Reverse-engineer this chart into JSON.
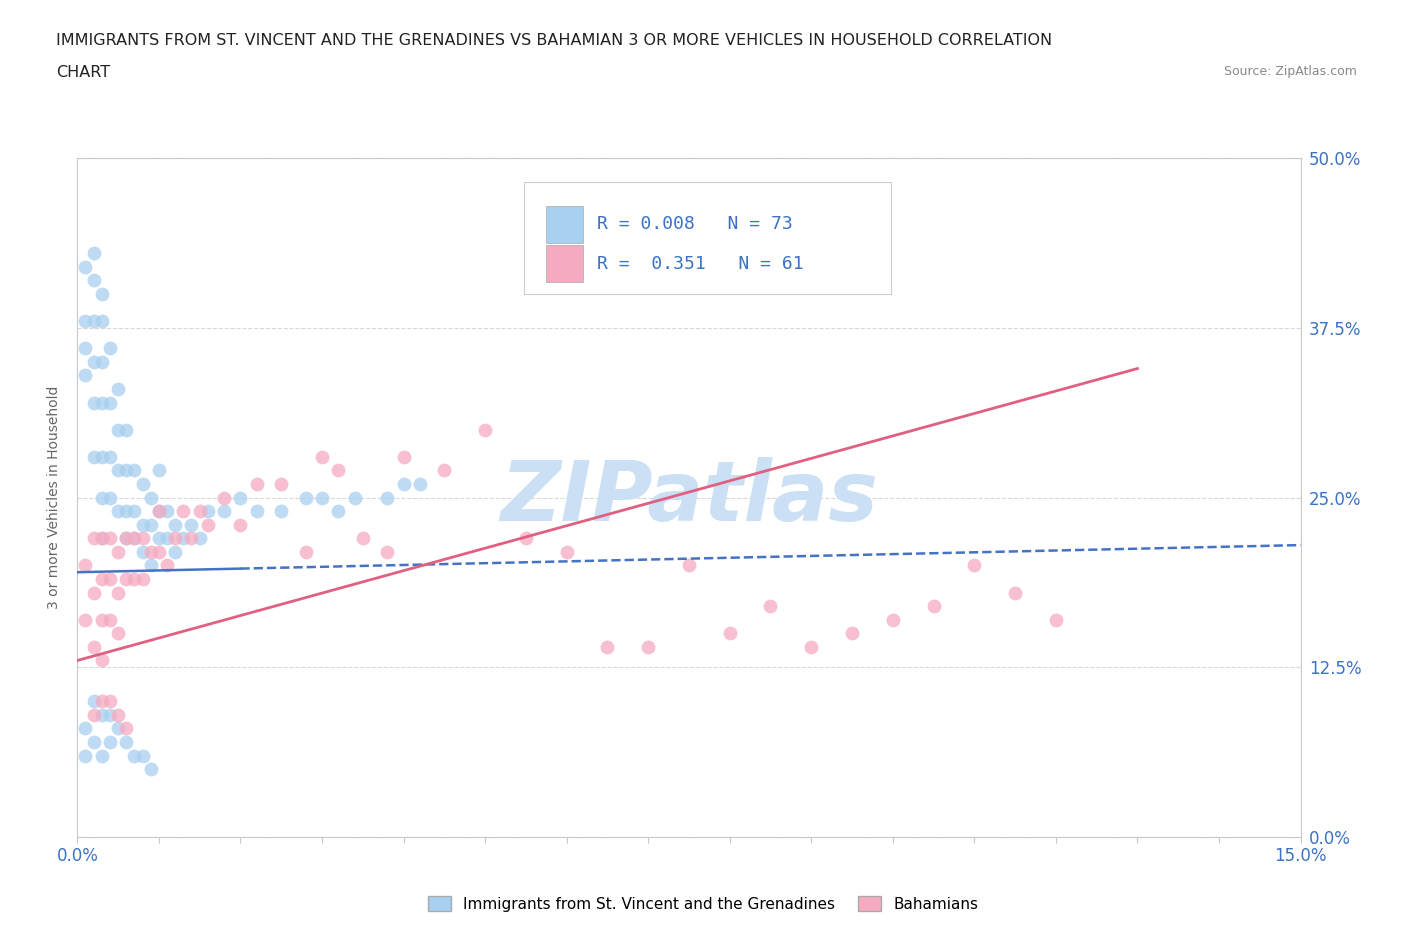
{
  "title_line1": "IMMIGRANTS FROM ST. VINCENT AND THE GRENADINES VS BAHAMIAN 3 OR MORE VEHICLES IN HOUSEHOLD CORRELATION",
  "title_line2": "CHART",
  "source_text": "Source: ZipAtlas.com",
  "ylabel": "3 or more Vehicles in Household",
  "xmin": 0.0,
  "xmax": 0.15,
  "ymin": 0.0,
  "ymax": 0.5,
  "blue_color": "#a8d0f0",
  "pink_color": "#f5aac0",
  "blue_line_color": "#4472c4",
  "pink_line_color": "#e06080",
  "watermark_color": "#cce0f5",
  "legend_R1": "0.008",
  "legend_N1": "73",
  "legend_R2": "0.351",
  "legend_N2": "61",
  "tick_color": "#3b72c4",
  "ytick_labels": [
    "0.0%",
    "12.5%",
    "25.0%",
    "37.5%",
    "50.0%"
  ],
  "ytick_values": [
    0.0,
    0.125,
    0.25,
    0.375,
    0.5
  ],
  "blue_scatter_x": [
    0.001,
    0.001,
    0.001,
    0.001,
    0.002,
    0.002,
    0.002,
    0.002,
    0.002,
    0.002,
    0.003,
    0.003,
    0.003,
    0.003,
    0.003,
    0.003,
    0.003,
    0.004,
    0.004,
    0.004,
    0.004,
    0.005,
    0.005,
    0.005,
    0.005,
    0.006,
    0.006,
    0.006,
    0.006,
    0.007,
    0.007,
    0.007,
    0.008,
    0.008,
    0.008,
    0.009,
    0.009,
    0.009,
    0.01,
    0.01,
    0.01,
    0.011,
    0.011,
    0.012,
    0.012,
    0.013,
    0.014,
    0.015,
    0.016,
    0.018,
    0.02,
    0.022,
    0.025,
    0.028,
    0.03,
    0.032,
    0.034,
    0.038,
    0.04,
    0.042,
    0.001,
    0.001,
    0.002,
    0.002,
    0.003,
    0.003,
    0.004,
    0.004,
    0.005,
    0.006,
    0.007,
    0.008,
    0.009
  ],
  "blue_scatter_y": [
    0.42,
    0.38,
    0.36,
    0.34,
    0.43,
    0.41,
    0.38,
    0.35,
    0.32,
    0.28,
    0.4,
    0.38,
    0.35,
    0.32,
    0.28,
    0.25,
    0.22,
    0.36,
    0.32,
    0.28,
    0.25,
    0.33,
    0.3,
    0.27,
    0.24,
    0.3,
    0.27,
    0.24,
    0.22,
    0.27,
    0.24,
    0.22,
    0.26,
    0.23,
    0.21,
    0.25,
    0.23,
    0.2,
    0.27,
    0.24,
    0.22,
    0.24,
    0.22,
    0.23,
    0.21,
    0.22,
    0.23,
    0.22,
    0.24,
    0.24,
    0.25,
    0.24,
    0.24,
    0.25,
    0.25,
    0.24,
    0.25,
    0.25,
    0.26,
    0.26,
    0.08,
    0.06,
    0.1,
    0.07,
    0.09,
    0.06,
    0.09,
    0.07,
    0.08,
    0.07,
    0.06,
    0.06,
    0.05
  ],
  "pink_scatter_x": [
    0.001,
    0.001,
    0.002,
    0.002,
    0.002,
    0.003,
    0.003,
    0.003,
    0.003,
    0.004,
    0.004,
    0.004,
    0.005,
    0.005,
    0.005,
    0.006,
    0.006,
    0.007,
    0.007,
    0.008,
    0.008,
    0.009,
    0.01,
    0.01,
    0.011,
    0.012,
    0.013,
    0.014,
    0.015,
    0.016,
    0.018,
    0.02,
    0.022,
    0.025,
    0.028,
    0.03,
    0.032,
    0.035,
    0.038,
    0.04,
    0.045,
    0.05,
    0.055,
    0.06,
    0.065,
    0.07,
    0.075,
    0.08,
    0.085,
    0.09,
    0.095,
    0.1,
    0.105,
    0.11,
    0.115,
    0.12,
    0.002,
    0.003,
    0.004,
    0.005,
    0.006
  ],
  "pink_scatter_y": [
    0.2,
    0.16,
    0.22,
    0.18,
    0.14,
    0.22,
    0.19,
    0.16,
    0.13,
    0.22,
    0.19,
    0.16,
    0.21,
    0.18,
    0.15,
    0.22,
    0.19,
    0.22,
    0.19,
    0.22,
    0.19,
    0.21,
    0.24,
    0.21,
    0.2,
    0.22,
    0.24,
    0.22,
    0.24,
    0.23,
    0.25,
    0.23,
    0.26,
    0.26,
    0.21,
    0.28,
    0.27,
    0.22,
    0.21,
    0.28,
    0.27,
    0.3,
    0.22,
    0.21,
    0.14,
    0.14,
    0.2,
    0.15,
    0.17,
    0.14,
    0.15,
    0.16,
    0.17,
    0.2,
    0.18,
    0.16,
    0.09,
    0.1,
    0.1,
    0.09,
    0.08
  ],
  "blue_trend_x0": 0.0,
  "blue_trend_y0": 0.195,
  "blue_trend_x1": 0.15,
  "blue_trend_y1": 0.215,
  "pink_trend_x0": 0.0,
  "pink_trend_y0": 0.13,
  "pink_trend_x1": 0.13,
  "pink_trend_y1": 0.345,
  "legend_label_blue": "Immigrants from St. Vincent and the Grenadines",
  "legend_label_pink": "Bahamians",
  "axis_color": "#c8c8c8",
  "grid_color": "#d8d8d8"
}
